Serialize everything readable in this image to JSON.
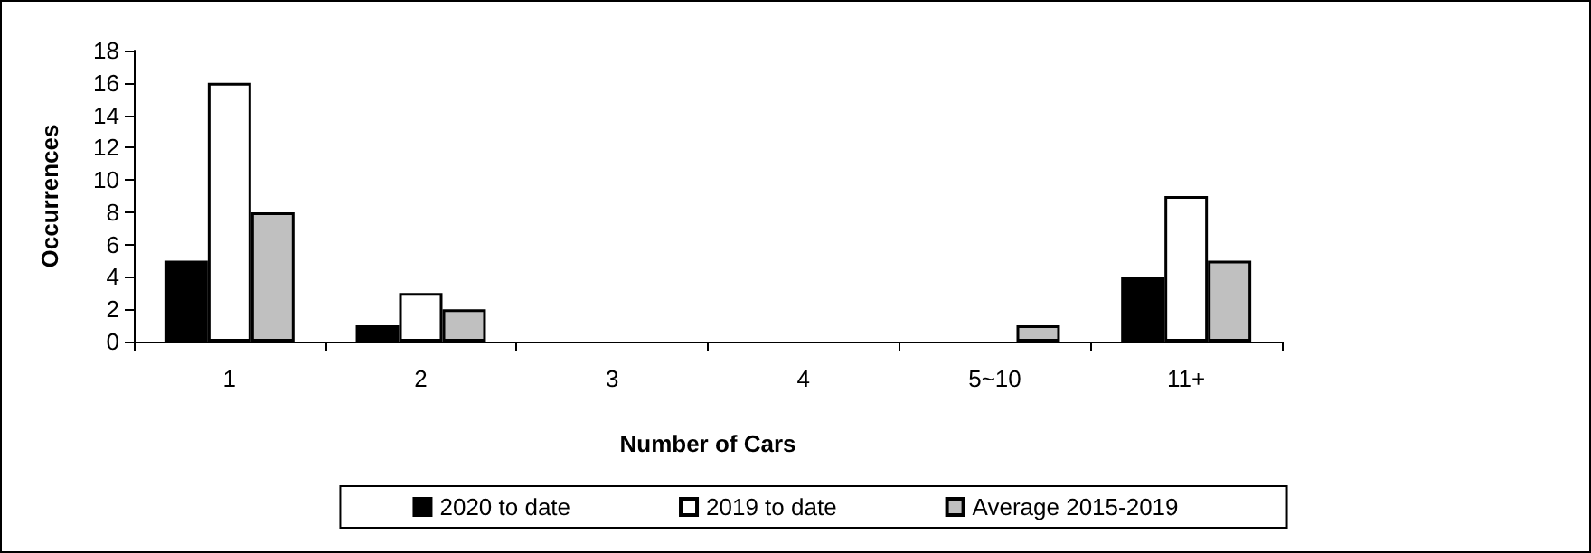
{
  "chart_data": {
    "type": "bar",
    "xlabel": "Number of Cars",
    "ylabel": "Occurrences",
    "categories": [
      "1",
      "2",
      "3",
      "4",
      "5~10",
      "11+"
    ],
    "series": [
      {
        "name": "2020 to date",
        "color": "#000000",
        "values": [
          5,
          1,
          0,
          0,
          0,
          4
        ]
      },
      {
        "name": "2019 to date",
        "color": "#ffffff",
        "values": [
          16,
          3,
          0,
          0,
          0,
          9
        ]
      },
      {
        "name": "Average 2015-2019",
        "color": "#c0c0c0",
        "values": [
          8,
          2,
          0,
          0,
          1,
          5
        ]
      }
    ],
    "ylim": [
      0,
      18
    ],
    "yticks": [
      0,
      2,
      4,
      6,
      8,
      10,
      12,
      14,
      16,
      18
    ],
    "grid": false,
    "legend": "bottom"
  }
}
